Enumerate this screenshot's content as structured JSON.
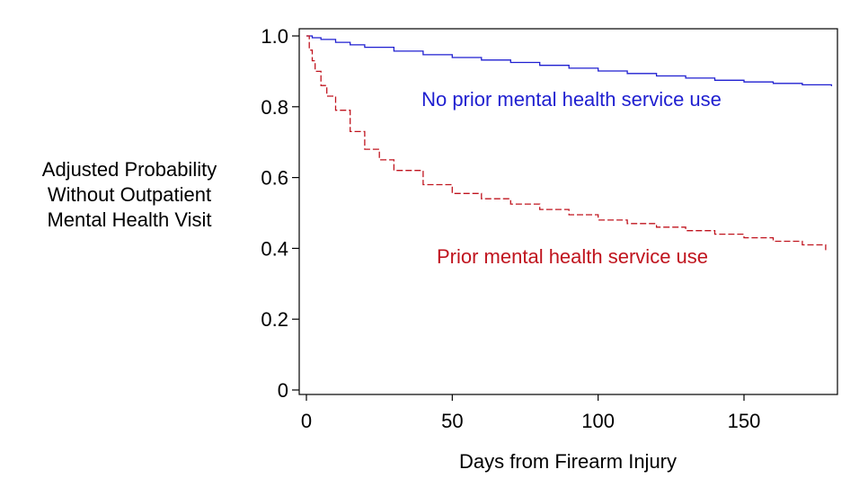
{
  "chart_data": {
    "type": "line",
    "title": "",
    "xlabel": "Days from Firearm Injury",
    "ylabel_lines": [
      "Adjusted Probability",
      "Without Outpatient",
      "Mental Health Visit"
    ],
    "xlim": [
      0,
      180
    ],
    "ylim": [
      0,
      1
    ],
    "x_ticks": [
      0,
      50,
      100,
      150
    ],
    "x_tick_labels": [
      "0",
      "50",
      "100",
      "150"
    ],
    "y_ticks": [
      0,
      0.2,
      0.4,
      0.6,
      0.8,
      1.0
    ],
    "y_tick_labels": [
      "0",
      "0.2",
      "0.4",
      "0.6",
      "0.8",
      "1.0"
    ],
    "grid": false,
    "legend": "none",
    "series": [
      {
        "name": "No prior mental health service use",
        "color": "#1f1fd0",
        "line_style": "solid",
        "step": true,
        "x": [
          0,
          2,
          5,
          10,
          15,
          20,
          30,
          40,
          50,
          60,
          70,
          80,
          90,
          100,
          110,
          120,
          130,
          140,
          150,
          160,
          170,
          180
        ],
        "y": [
          1.0,
          0.995,
          0.99,
          0.982,
          0.975,
          0.968,
          0.957,
          0.947,
          0.939,
          0.932,
          0.925,
          0.917,
          0.909,
          0.901,
          0.894,
          0.887,
          0.881,
          0.875,
          0.87,
          0.866,
          0.862,
          0.858
        ]
      },
      {
        "name": "Prior mental health service use",
        "color": "#c0141e",
        "line_style": "dashed",
        "step": true,
        "x": [
          0,
          1,
          2,
          3,
          5,
          7,
          10,
          15,
          20,
          25,
          30,
          40,
          50,
          60,
          70,
          80,
          90,
          100,
          110,
          120,
          130,
          140,
          150,
          160,
          170,
          178
        ],
        "y": [
          1.0,
          0.96,
          0.93,
          0.9,
          0.86,
          0.83,
          0.79,
          0.73,
          0.68,
          0.65,
          0.62,
          0.58,
          0.555,
          0.54,
          0.525,
          0.51,
          0.495,
          0.48,
          0.47,
          0.46,
          0.45,
          0.44,
          0.43,
          0.42,
          0.41,
          0.395
        ]
      }
    ],
    "annotations": [
      {
        "text": "No prior mental health service use",
        "series": 0,
        "color": "#1f1fd0"
      },
      {
        "text": "Prior mental health service use",
        "series": 1,
        "color": "#c0141e"
      }
    ]
  }
}
